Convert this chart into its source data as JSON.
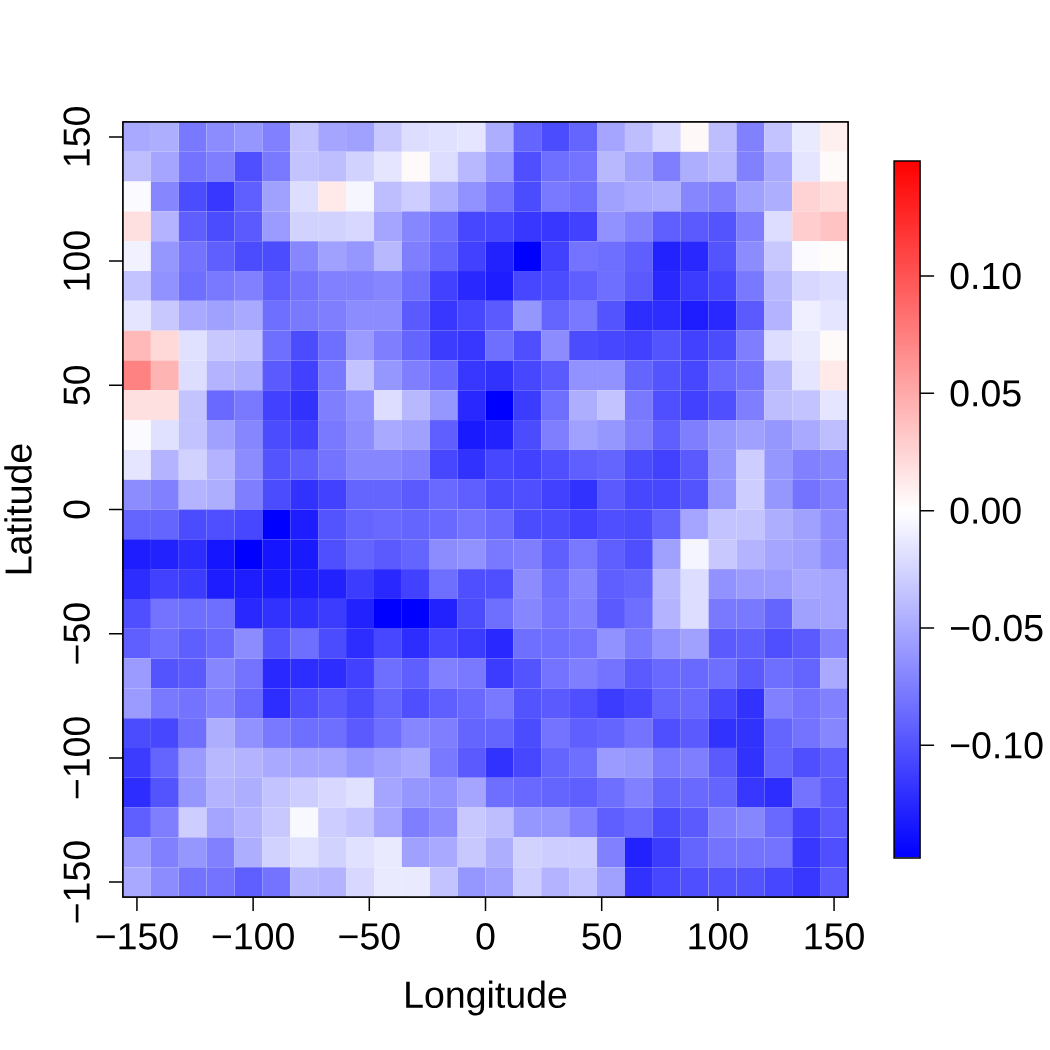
{
  "chart_data": {
    "type": "heatmap",
    "xlabel": "Longitude",
    "ylabel": "Latitude",
    "x": [
      -150,
      -138,
      -126,
      -114,
      -102,
      -90,
      -78,
      -66,
      -54,
      -42,
      -30,
      -18,
      -6,
      6,
      18,
      30,
      42,
      54,
      66,
      78,
      90,
      102,
      114,
      126,
      138,
      150
    ],
    "y": [
      150,
      138,
      126,
      114,
      102,
      90,
      78,
      66,
      54,
      42,
      30,
      18,
      6,
      -6,
      -18,
      -30,
      -42,
      -54,
      -66,
      -78,
      -90,
      -102,
      -114,
      -126,
      -138,
      -150
    ],
    "xlim": [
      -156,
      156
    ],
    "ylim": [
      -156,
      156
    ],
    "xticks": [
      {
        "value": -150,
        "label": "−150"
      },
      {
        "value": -100,
        "label": "−100"
      },
      {
        "value": -50,
        "label": "−50"
      },
      0,
      50,
      100,
      150
    ],
    "yticks": [
      {
        "value": -150,
        "label": "−150"
      },
      {
        "value": -100,
        "label": "−100"
      },
      {
        "value": -50,
        "label": "−50"
      },
      0,
      50,
      100,
      150
    ],
    "clim": [
      -0.148,
      0.149
    ],
    "cticks": [
      {
        "value": -0.1,
        "label": "−0.10"
      },
      {
        "value": -0.05,
        "label": "−0.05"
      },
      {
        "value": 0,
        "label": "0.00"
      },
      {
        "value": 0.05,
        "label": "0.05"
      },
      {
        "value": 0.1,
        "label": "0.10"
      }
    ],
    "cells": [
      [
        -0.05,
        -0.047,
        -0.078,
        -0.067,
        -0.061,
        -0.073,
        -0.035,
        -0.052,
        -0.055,
        -0.032,
        -0.02,
        -0.018,
        -0.015,
        -0.047,
        -0.09,
        -0.104,
        -0.09,
        -0.052,
        -0.038,
        -0.023,
        0.004,
        -0.038,
        -0.073,
        -0.035,
        -0.012,
        0.009
      ],
      [
        -0.038,
        -0.052,
        -0.081,
        -0.075,
        -0.102,
        -0.078,
        -0.035,
        -0.038,
        -0.026,
        -0.015,
        0.003,
        -0.02,
        -0.041,
        -0.061,
        -0.102,
        -0.084,
        -0.081,
        -0.041,
        -0.055,
        -0.075,
        -0.047,
        -0.041,
        -0.073,
        -0.05,
        -0.015,
        0.003
      ],
      [
        -0.003,
        -0.07,
        -0.104,
        -0.116,
        -0.093,
        -0.055,
        -0.02,
        0.013,
        -0.005,
        -0.038,
        -0.029,
        -0.047,
        -0.064,
        -0.081,
        -0.104,
        -0.078,
        -0.084,
        -0.055,
        -0.05,
        -0.047,
        -0.07,
        -0.075,
        -0.055,
        -0.047,
        0.026,
        0.02
      ],
      [
        0.018,
        -0.044,
        -0.093,
        -0.104,
        -0.096,
        -0.058,
        -0.026,
        -0.026,
        -0.023,
        -0.052,
        -0.07,
        -0.084,
        -0.107,
        -0.107,
        -0.116,
        -0.116,
        -0.11,
        -0.064,
        -0.073,
        -0.093,
        -0.096,
        -0.099,
        -0.075,
        -0.02,
        0.029,
        0.035
      ],
      [
        -0.008,
        -0.061,
        -0.081,
        -0.093,
        -0.104,
        -0.104,
        -0.07,
        -0.055,
        -0.061,
        -0.041,
        -0.075,
        -0.09,
        -0.11,
        -0.128,
        -0.148,
        -0.11,
        -0.081,
        -0.084,
        -0.093,
        -0.128,
        -0.125,
        -0.099,
        -0.067,
        -0.032,
        -0.003,
        0.002
      ],
      [
        -0.035,
        -0.064,
        -0.084,
        -0.078,
        -0.073,
        -0.093,
        -0.081,
        -0.073,
        -0.073,
        -0.07,
        -0.084,
        -0.11,
        -0.125,
        -0.131,
        -0.107,
        -0.104,
        -0.093,
        -0.084,
        -0.096,
        -0.125,
        -0.113,
        -0.107,
        -0.078,
        -0.041,
        -0.023,
        -0.02
      ],
      [
        -0.015,
        -0.032,
        -0.05,
        -0.055,
        -0.05,
        -0.084,
        -0.078,
        -0.075,
        -0.067,
        -0.067,
        -0.096,
        -0.116,
        -0.107,
        -0.096,
        -0.061,
        -0.09,
        -0.078,
        -0.099,
        -0.122,
        -0.122,
        -0.131,
        -0.125,
        -0.096,
        -0.044,
        -0.009,
        -0.015
      ],
      [
        0.041,
        0.023,
        -0.018,
        -0.032,
        -0.035,
        -0.084,
        -0.104,
        -0.084,
        -0.058,
        -0.075,
        -0.09,
        -0.113,
        -0.116,
        -0.084,
        -0.102,
        -0.067,
        -0.104,
        -0.107,
        -0.11,
        -0.099,
        -0.11,
        -0.104,
        -0.075,
        -0.02,
        -0.012,
        0.003
      ],
      [
        0.073,
        0.044,
        -0.02,
        -0.044,
        -0.047,
        -0.096,
        -0.11,
        -0.078,
        -0.035,
        -0.061,
        -0.075,
        -0.087,
        -0.116,
        -0.119,
        -0.107,
        -0.096,
        -0.064,
        -0.064,
        -0.09,
        -0.099,
        -0.107,
        -0.087,
        -0.081,
        -0.041,
        -0.015,
        0.013
      ],
      [
        0.018,
        0.018,
        -0.035,
        -0.087,
        -0.078,
        -0.11,
        -0.119,
        -0.075,
        -0.064,
        -0.02,
        -0.041,
        -0.061,
        -0.125,
        -0.148,
        -0.113,
        -0.084,
        -0.047,
        -0.035,
        -0.078,
        -0.102,
        -0.11,
        -0.102,
        -0.075,
        -0.038,
        -0.035,
        -0.015
      ],
      [
        -0.003,
        -0.018,
        -0.035,
        -0.055,
        -0.07,
        -0.104,
        -0.11,
        -0.078,
        -0.067,
        -0.05,
        -0.055,
        -0.093,
        -0.133,
        -0.128,
        -0.104,
        -0.075,
        -0.055,
        -0.061,
        -0.075,
        -0.093,
        -0.075,
        -0.061,
        -0.055,
        -0.061,
        -0.05,
        -0.038
      ],
      [
        -0.015,
        -0.044,
        -0.026,
        -0.044,
        -0.067,
        -0.099,
        -0.093,
        -0.081,
        -0.07,
        -0.07,
        -0.075,
        -0.107,
        -0.119,
        -0.107,
        -0.11,
        -0.102,
        -0.093,
        -0.09,
        -0.104,
        -0.11,
        -0.096,
        -0.061,
        -0.029,
        -0.061,
        -0.073,
        -0.07
      ],
      [
        -0.067,
        -0.073,
        -0.044,
        -0.047,
        -0.075,
        -0.104,
        -0.119,
        -0.11,
        -0.09,
        -0.09,
        -0.096,
        -0.087,
        -0.093,
        -0.104,
        -0.102,
        -0.11,
        -0.119,
        -0.096,
        -0.107,
        -0.107,
        -0.099,
        -0.061,
        -0.029,
        -0.061,
        -0.081,
        -0.073
      ],
      [
        -0.09,
        -0.09,
        -0.104,
        -0.102,
        -0.107,
        -0.148,
        -0.131,
        -0.099,
        -0.09,
        -0.087,
        -0.09,
        -0.087,
        -0.081,
        -0.087,
        -0.104,
        -0.104,
        -0.11,
        -0.102,
        -0.104,
        -0.09,
        -0.052,
        -0.035,
        -0.035,
        -0.047,
        -0.055,
        -0.067
      ],
      [
        -0.131,
        -0.128,
        -0.122,
        -0.136,
        -0.148,
        -0.136,
        -0.133,
        -0.102,
        -0.09,
        -0.096,
        -0.09,
        -0.067,
        -0.064,
        -0.078,
        -0.075,
        -0.093,
        -0.078,
        -0.093,
        -0.102,
        -0.055,
        -0.006,
        -0.032,
        -0.044,
        -0.052,
        -0.055,
        -0.067
      ],
      [
        -0.122,
        -0.11,
        -0.113,
        -0.131,
        -0.131,
        -0.133,
        -0.131,
        -0.128,
        -0.113,
        -0.125,
        -0.11,
        -0.084,
        -0.102,
        -0.102,
        -0.067,
        -0.084,
        -0.07,
        -0.093,
        -0.09,
        -0.041,
        -0.02,
        -0.064,
        -0.058,
        -0.058,
        -0.05,
        -0.052
      ],
      [
        -0.102,
        -0.081,
        -0.084,
        -0.084,
        -0.125,
        -0.119,
        -0.119,
        -0.113,
        -0.128,
        -0.148,
        -0.148,
        -0.128,
        -0.104,
        -0.084,
        -0.07,
        -0.081,
        -0.073,
        -0.096,
        -0.084,
        -0.044,
        -0.02,
        -0.078,
        -0.078,
        -0.09,
        -0.055,
        -0.052
      ],
      [
        -0.093,
        -0.084,
        -0.093,
        -0.087,
        -0.067,
        -0.099,
        -0.084,
        -0.104,
        -0.122,
        -0.107,
        -0.122,
        -0.107,
        -0.113,
        -0.125,
        -0.084,
        -0.084,
        -0.081,
        -0.064,
        -0.078,
        -0.064,
        -0.055,
        -0.096,
        -0.093,
        -0.102,
        -0.096,
        -0.073
      ],
      [
        -0.058,
        -0.099,
        -0.096,
        -0.07,
        -0.081,
        -0.125,
        -0.122,
        -0.122,
        -0.11,
        -0.084,
        -0.093,
        -0.073,
        -0.078,
        -0.113,
        -0.099,
        -0.081,
        -0.075,
        -0.081,
        -0.096,
        -0.087,
        -0.087,
        -0.084,
        -0.096,
        -0.084,
        -0.09,
        -0.05
      ],
      [
        -0.058,
        -0.078,
        -0.081,
        -0.073,
        -0.087,
        -0.122,
        -0.102,
        -0.096,
        -0.104,
        -0.09,
        -0.102,
        -0.093,
        -0.087,
        -0.078,
        -0.099,
        -0.096,
        -0.102,
        -0.113,
        -0.107,
        -0.09,
        -0.087,
        -0.107,
        -0.119,
        -0.073,
        -0.081,
        -0.073
      ],
      [
        -0.104,
        -0.107,
        -0.084,
        -0.047,
        -0.064,
        -0.078,
        -0.084,
        -0.084,
        -0.096,
        -0.084,
        -0.07,
        -0.075,
        -0.09,
        -0.09,
        -0.104,
        -0.081,
        -0.093,
        -0.09,
        -0.081,
        -0.102,
        -0.096,
        -0.119,
        -0.119,
        -0.09,
        -0.081,
        -0.07
      ],
      [
        -0.113,
        -0.09,
        -0.058,
        -0.041,
        -0.044,
        -0.05,
        -0.052,
        -0.052,
        -0.061,
        -0.055,
        -0.05,
        -0.078,
        -0.096,
        -0.119,
        -0.107,
        -0.09,
        -0.084,
        -0.058,
        -0.061,
        -0.078,
        -0.075,
        -0.096,
        -0.119,
        -0.09,
        -0.102,
        -0.093
      ],
      [
        -0.122,
        -0.099,
        -0.061,
        -0.044,
        -0.047,
        -0.035,
        -0.029,
        -0.023,
        -0.018,
        -0.052,
        -0.061,
        -0.064,
        -0.052,
        -0.084,
        -0.087,
        -0.09,
        -0.093,
        -0.084,
        -0.073,
        -0.09,
        -0.087,
        -0.09,
        -0.116,
        -0.122,
        -0.081,
        -0.096
      ],
      [
        -0.093,
        -0.075,
        -0.029,
        -0.052,
        -0.044,
        -0.032,
        -0.004,
        -0.029,
        -0.035,
        -0.052,
        -0.075,
        -0.067,
        -0.032,
        -0.038,
        -0.061,
        -0.061,
        -0.073,
        -0.093,
        -0.087,
        -0.104,
        -0.096,
        -0.075,
        -0.07,
        -0.087,
        -0.11,
        -0.096
      ],
      [
        -0.058,
        -0.073,
        -0.061,
        -0.073,
        -0.047,
        -0.026,
        -0.018,
        -0.026,
        -0.018,
        -0.012,
        -0.055,
        -0.05,
        -0.032,
        -0.047,
        -0.026,
        -0.029,
        -0.029,
        -0.073,
        -0.128,
        -0.113,
        -0.09,
        -0.081,
        -0.081,
        -0.081,
        -0.116,
        -0.102
      ],
      [
        -0.05,
        -0.067,
        -0.081,
        -0.081,
        -0.093,
        -0.081,
        -0.041,
        -0.044,
        -0.023,
        -0.012,
        -0.012,
        -0.035,
        -0.061,
        -0.055,
        -0.029,
        -0.044,
        -0.035,
        -0.055,
        -0.119,
        -0.107,
        -0.102,
        -0.099,
        -0.099,
        -0.107,
        -0.116,
        -0.096
      ]
    ]
  }
}
